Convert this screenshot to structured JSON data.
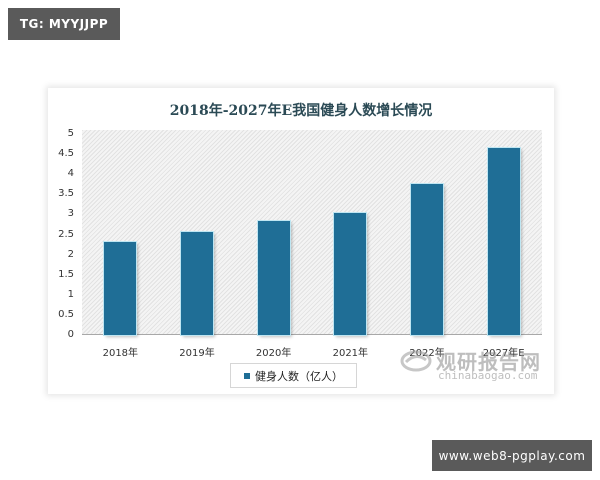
{
  "overlays": {
    "top_left_badge": "TG: MYYJJPP",
    "bottom_right_badge": "www.web8-pgplay.com"
  },
  "colors": {
    "bar": "#1f6e96",
    "badge_bg": "#5a5a5a",
    "title": "#2b4a55"
  },
  "chart": {
    "title": "2018年-2027年E我国健身人数增长情况",
    "legend_label": "健身人数（亿人）",
    "watermark_cn": "观研报告网",
    "watermark_en": "chinabaogao.com",
    "y_ticks": [
      "0",
      "0.5",
      "1",
      "1.5",
      "2",
      "2.5",
      "3",
      "3.5",
      "4",
      "4.5",
      "5"
    ],
    "x_ticks": [
      "2018年",
      "2019年",
      "2020年",
      "2021年",
      "2022年",
      "2027年E"
    ]
  },
  "chart_data": {
    "type": "bar",
    "title": "2018年-2027年E我国健身人数增长情况",
    "categories": [
      "2018年",
      "2019年",
      "2020年",
      "2021年",
      "2022年",
      "2027年E"
    ],
    "series": [
      {
        "name": "健身人数（亿人）",
        "values": [
          2.31,
          2.56,
          2.84,
          3.03,
          3.76,
          4.65
        ]
      }
    ],
    "xlabel": "",
    "ylabel": "",
    "ylim": [
      0,
      5
    ],
    "y_tick_step": 0.5,
    "grid": false,
    "legend_position": "bottom",
    "source_watermark": "观研报告网 chinabaogao.com"
  }
}
